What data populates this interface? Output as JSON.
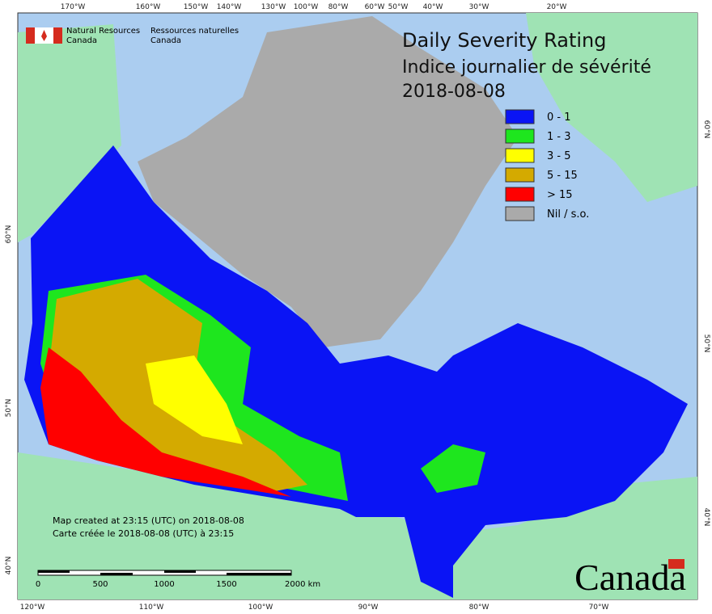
{
  "header": {
    "org_en": "Natural Resources",
    "org_en_2": "Canada",
    "org_fr": "Ressources naturelles",
    "org_fr_2": "Canada",
    "title": "Daily Severity Rating",
    "subtitle": "Indice journalier de sévérité",
    "date": "2018-08-08"
  },
  "legend": [
    {
      "label": "0 - 1",
      "color": "#0a14f5"
    },
    {
      "label": "1 - 3",
      "color": "#1ee61e"
    },
    {
      "label": "3 - 5",
      "color": "#ffff00"
    },
    {
      "label": "5 - 15",
      "color": "#d4aa00"
    },
    {
      "label": "> 15",
      "color": "#ff0000"
    },
    {
      "label": "Nil / s.o.",
      "color": "#aaaaaa"
    }
  ],
  "graticule": {
    "top": [
      "170°W",
      "160°W",
      "150°W",
      "140°W",
      "130°W",
      "100°W",
      "80°W",
      "60°W",
      "50°W",
      "40°W",
      "30°W",
      "20°W"
    ],
    "bottom": [
      "120°W",
      "110°W",
      "100°W",
      "90°W",
      "80°W",
      "70°W"
    ],
    "left": [
      "60°N",
      "50°N",
      "40°N"
    ],
    "right": [
      "60°N",
      "50°N",
      "40°N"
    ]
  },
  "footnote": {
    "en": "Map created at 23:15 (UTC) on 2018-08-08",
    "fr": "Carte créée le 2018-08-08 (UTC) à 23:15"
  },
  "scale": {
    "labels": [
      "0",
      "500",
      "1000",
      "1500",
      "2000 km"
    ]
  },
  "wordmark": "Canada"
}
